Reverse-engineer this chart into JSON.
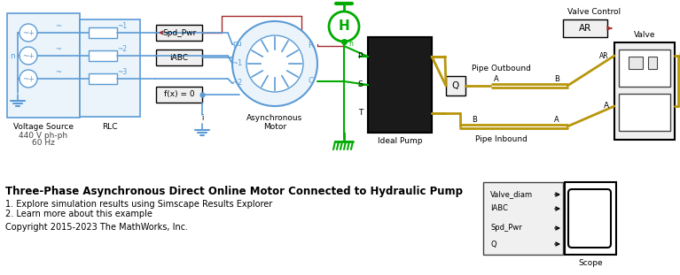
{
  "bg_color": "#ffffff",
  "fig_width": 7.67,
  "fig_height": 3.11,
  "title": "Three-Phase Asynchronous Direct Online Motor Connected to Hydraulic Pump",
  "line1": "1. Explore simulation results using Simscape Results Explorer",
  "line2": "2. Learn more about this example",
  "copyright": "Copyright 2015-2023 The MathWorks, Inc.",
  "title_fontsize": 8.5,
  "body_fontsize": 7,
  "lb": "#5B9BD5",
  "green": "#00AA00",
  "brown": "#B8960C",
  "red": "#A52A2A",
  "dgray": "#444444",
  "box_fill": "#E8E8E8",
  "box_fill2": "#F0F0F0"
}
